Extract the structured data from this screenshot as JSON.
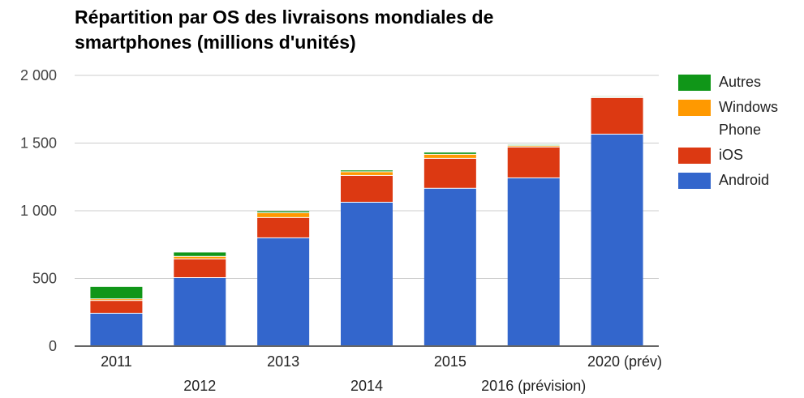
{
  "chart_data": {
    "type": "bar",
    "stacked": true,
    "title": "Répartition par OS des livraisons mondiales de smartphones (millions d'unités)",
    "xlabel": "",
    "ylabel": "",
    "ylim": [
      0,
      2000
    ],
    "yticks": [
      0,
      500,
      1000,
      1500,
      2000
    ],
    "ytick_labels": [
      "0",
      "500",
      "1 000",
      "1 500",
      "2 000"
    ],
    "grid": true,
    "legend_position": "right",
    "categories": [
      "2011",
      "2012",
      "2013",
      "2014",
      "2015",
      "2016 (prévision)",
      "2020 (prév)"
    ],
    "series": [
      {
        "name": "Android",
        "color": "#3366cc",
        "values": [
          240,
          503,
          797,
          1060,
          1163,
          1240,
          1563
        ]
      },
      {
        "name": "iOS",
        "color": "#dc3912",
        "values": [
          94,
          138,
          150,
          198,
          221,
          228,
          270
        ]
      },
      {
        "name": "Windows Phone",
        "color": "#ff9900",
        "values": [
          12,
          19,
          35,
          27,
          30,
          10,
          5
        ]
      },
      {
        "name": "Autres",
        "color": "#109618",
        "values": [
          92,
          32,
          14,
          13,
          16,
          8,
          7
        ]
      }
    ],
    "legend_order": [
      "Autres",
      "Windows Phone",
      "iOS",
      "Android"
    ]
  }
}
